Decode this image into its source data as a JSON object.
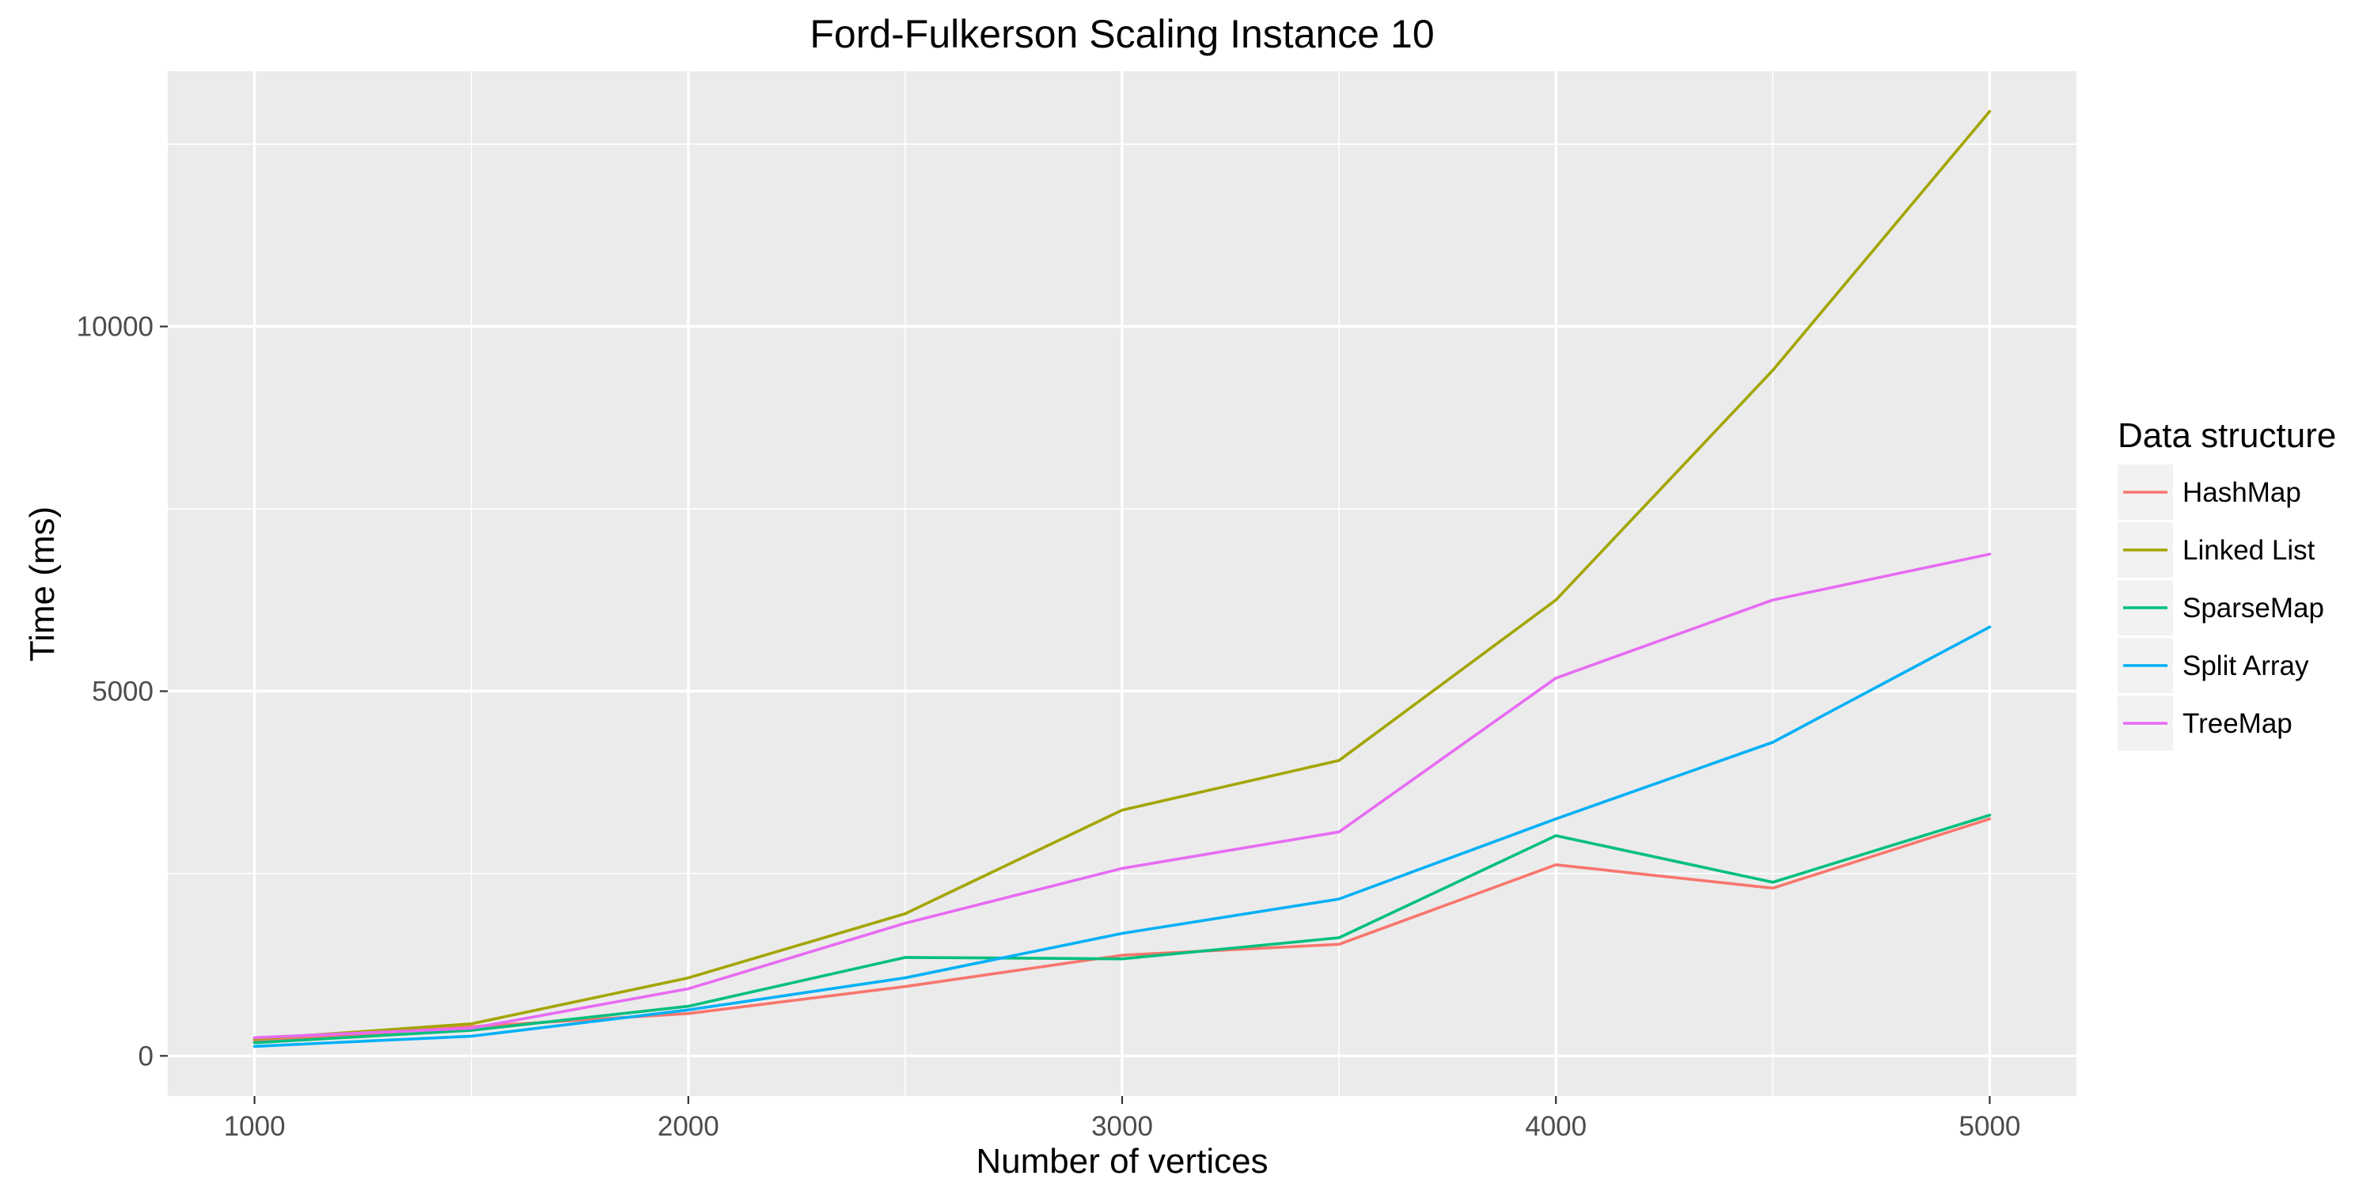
{
  "chart_data": {
    "type": "line",
    "title": "Ford-Fulkerson Scaling Instance 10",
    "xlabel": "Number of vertices",
    "ylabel": "Time (ms)",
    "x": [
      1000,
      1500,
      2000,
      2500,
      3000,
      3500,
      4000,
      4500,
      5000
    ],
    "xlim": [
      800,
      5200
    ],
    "ylim": [
      -550,
      13500
    ],
    "x_ticks": [
      1000,
      2000,
      3000,
      4000,
      5000
    ],
    "y_ticks": [
      0,
      5000,
      10000
    ],
    "x_tick_labels": [
      "1000",
      "2000",
      "3000",
      "4000",
      "5000"
    ],
    "y_tick_labels": [
      "0",
      "5000",
      "10000"
    ],
    "grid": true,
    "legend_position": "right",
    "legend_title": "Data structure",
    "series": [
      {
        "name": "HashMap",
        "color": "#F8766D",
        "values": [
          200,
          400,
          580,
          950,
          1380,
          1530,
          2620,
          2300,
          3250
        ]
      },
      {
        "name": "Linked List",
        "color": "#A3A500",
        "values": [
          230,
          440,
          1070,
          1950,
          3370,
          4050,
          6250,
          9400,
          12950
        ]
      },
      {
        "name": "SparseMap",
        "color": "#00BF7D",
        "values": [
          180,
          350,
          680,
          1350,
          1330,
          1620,
          3020,
          2380,
          3300
        ]
      },
      {
        "name": "Split Array",
        "color": "#00B0F6",
        "values": [
          130,
          270,
          630,
          1070,
          1680,
          2150,
          3250,
          4300,
          5880
        ]
      },
      {
        "name": "TreeMap",
        "color": "#E76BF3",
        "values": [
          250,
          380,
          920,
          1820,
          2570,
          3070,
          5180,
          6250,
          6880
        ]
      }
    ]
  }
}
